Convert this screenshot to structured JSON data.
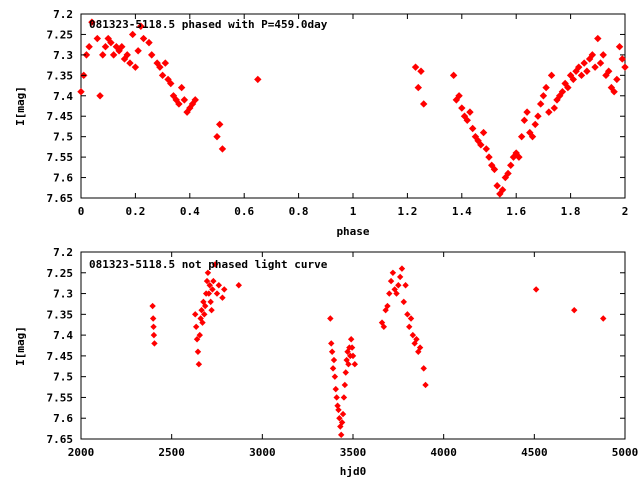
{
  "colors": {
    "marker": "#ff0000",
    "axis": "#000000",
    "background": "#ffffff"
  },
  "chart_data": [
    {
      "type": "scatter",
      "title": "081323-5118.5 phased with P=459.0day",
      "xlabel": "phase",
      "ylabel": "I[mag]",
      "xlim": [
        0,
        2
      ],
      "ylim": [
        7.2,
        7.65
      ],
      "y_inverted": true,
      "grid": false,
      "xticks": [
        "0",
        "0.2",
        "0.4",
        "0.6",
        "0.8",
        "1",
        "1.2",
        "1.4",
        "1.6",
        "1.8",
        "2"
      ],
      "yticks": [
        "7.2",
        "7.25",
        "7.3",
        "7.35",
        "7.4",
        "7.45",
        "7.5",
        "7.55",
        "7.6",
        "7.65"
      ],
      "series": [
        {
          "x": [
            0.0,
            0.01,
            0.02,
            0.03,
            0.04,
            0.06,
            0.07,
            0.08,
            0.09,
            0.1,
            0.11,
            0.12,
            0.13,
            0.14,
            0.15,
            0.16,
            0.17,
            0.18,
            0.19,
            0.2,
            0.21,
            0.22,
            0.23,
            0.25,
            0.26,
            0.28,
            0.29,
            0.3,
            0.31,
            0.32,
            0.33,
            0.34,
            0.35,
            0.36,
            0.37,
            0.38,
            0.39,
            0.4,
            0.41,
            0.42,
            0.5,
            0.51,
            0.52,
            0.65,
            1.23,
            1.24,
            1.25,
            1.26,
            1.37,
            1.38,
            1.39,
            1.4,
            1.41,
            1.42,
            1.43,
            1.44,
            1.45,
            1.46,
            1.47,
            1.48,
            1.49,
            1.5,
            1.51,
            1.52,
            1.53,
            1.54,
            1.55,
            1.56,
            1.57,
            1.58,
            1.59,
            1.6,
            1.61,
            1.62,
            1.63,
            1.64,
            1.65,
            1.66,
            1.67,
            1.68,
            1.69,
            1.7,
            1.71,
            1.72,
            1.73,
            1.74,
            1.75,
            1.76,
            1.77,
            1.78,
            1.79,
            1.8,
            1.81,
            1.82,
            1.83,
            1.84,
            1.85,
            1.86,
            1.87,
            1.88,
            1.89,
            1.9,
            1.91,
            1.92,
            1.93,
            1.94,
            1.95,
            1.96,
            1.97,
            1.98,
            1.99,
            2.0
          ],
          "y": [
            7.39,
            7.35,
            7.3,
            7.28,
            7.22,
            7.26,
            7.4,
            7.3,
            7.28,
            7.26,
            7.27,
            7.3,
            7.28,
            7.29,
            7.28,
            7.31,
            7.3,
            7.32,
            7.25,
            7.33,
            7.29,
            7.23,
            7.26,
            7.27,
            7.3,
            7.32,
            7.33,
            7.35,
            7.32,
            7.36,
            7.37,
            7.4,
            7.41,
            7.42,
            7.38,
            7.41,
            7.44,
            7.43,
            7.42,
            7.41,
            7.5,
            7.47,
            7.53,
            7.36,
            7.33,
            7.38,
            7.34,
            7.42,
            7.35,
            7.41,
            7.4,
            7.43,
            7.45,
            7.46,
            7.44,
            7.48,
            7.5,
            7.51,
            7.52,
            7.49,
            7.53,
            7.55,
            7.57,
            7.58,
            7.62,
            7.64,
            7.63,
            7.6,
            7.59,
            7.57,
            7.55,
            7.54,
            7.55,
            7.5,
            7.46,
            7.44,
            7.49,
            7.5,
            7.47,
            7.45,
            7.42,
            7.4,
            7.38,
            7.44,
            7.35,
            7.43,
            7.41,
            7.4,
            7.39,
            7.37,
            7.38,
            7.35,
            7.36,
            7.34,
            7.33,
            7.35,
            7.32,
            7.34,
            7.31,
            7.3,
            7.33,
            7.26,
            7.32,
            7.3,
            7.35,
            7.34,
            7.38,
            7.39,
            7.36,
            7.28,
            7.31,
            7.33
          ]
        }
      ]
    },
    {
      "type": "scatter",
      "title": "081323-5118.5 not phased light curve",
      "xlabel": "hjd0",
      "ylabel": "I[mag]",
      "xlim": [
        2000,
        5000
      ],
      "ylim": [
        7.2,
        7.65
      ],
      "y_inverted": true,
      "grid": false,
      "xticks": [
        "2000",
        "2500",
        "3000",
        "3500",
        "4000",
        "4500",
        "5000"
      ],
      "yticks": [
        "7.2",
        "7.25",
        "7.3",
        "7.35",
        "7.4",
        "7.45",
        "7.5",
        "7.55",
        "7.6",
        "7.65"
      ],
      "series": [
        {
          "x": [
            2395,
            2398,
            2400,
            2402,
            2405,
            2630,
            2635,
            2640,
            2645,
            2650,
            2655,
            2660,
            2665,
            2670,
            2675,
            2680,
            2685,
            2690,
            2695,
            2700,
            2705,
            2710,
            2715,
            2720,
            2725,
            2730,
            2740,
            2750,
            2760,
            2780,
            2790,
            2870,
            3375,
            3380,
            3385,
            3390,
            3395,
            3400,
            3405,
            3410,
            3415,
            3420,
            3425,
            3430,
            3435,
            3440,
            3445,
            3450,
            3455,
            3460,
            3465,
            3470,
            3475,
            3480,
            3485,
            3490,
            3495,
            3500,
            3510,
            3660,
            3670,
            3680,
            3690,
            3700,
            3710,
            3720,
            3730,
            3740,
            3750,
            3760,
            3770,
            3780,
            3790,
            3800,
            3810,
            3820,
            3830,
            3840,
            3850,
            3860,
            3870,
            3890,
            3900,
            4510,
            4720,
            4880
          ],
          "y": [
            7.33,
            7.36,
            7.38,
            7.4,
            7.42,
            7.35,
            7.38,
            7.41,
            7.44,
            7.47,
            7.4,
            7.36,
            7.34,
            7.37,
            7.32,
            7.35,
            7.33,
            7.3,
            7.27,
            7.25,
            7.3,
            7.28,
            7.32,
            7.34,
            7.29,
            7.27,
            7.23,
            7.3,
            7.28,
            7.31,
            7.29,
            7.28,
            7.36,
            7.42,
            7.44,
            7.48,
            7.46,
            7.5,
            7.53,
            7.55,
            7.57,
            7.58,
            7.6,
            7.62,
            7.64,
            7.61,
            7.59,
            7.55,
            7.52,
            7.49,
            7.46,
            7.44,
            7.47,
            7.43,
            7.45,
            7.41,
            7.43,
            7.45,
            7.47,
            7.37,
            7.38,
            7.34,
            7.33,
            7.3,
            7.27,
            7.25,
            7.29,
            7.3,
            7.28,
            7.26,
            7.24,
            7.32,
            7.28,
            7.35,
            7.38,
            7.36,
            7.4,
            7.42,
            7.41,
            7.44,
            7.43,
            7.48,
            7.52,
            7.29,
            7.34,
            7.36
          ]
        }
      ]
    }
  ]
}
